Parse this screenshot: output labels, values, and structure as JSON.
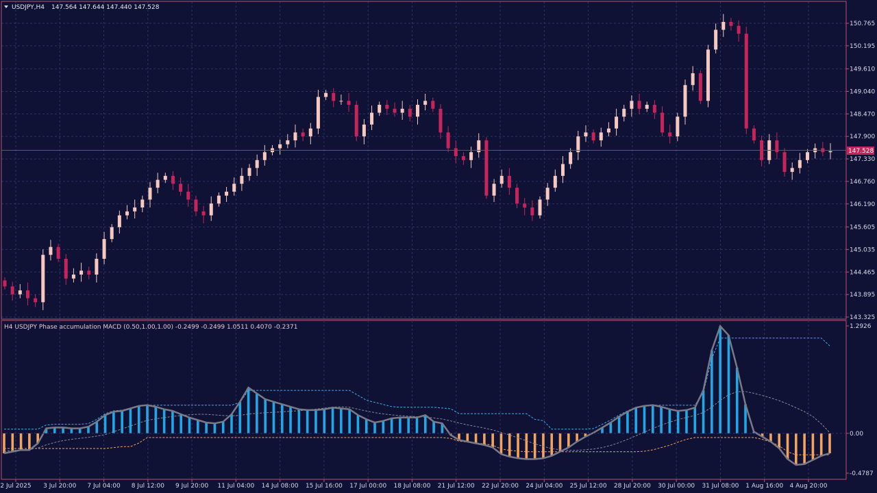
{
  "window": {
    "symbol_title": "USDJPY,H4",
    "ohlc_text": "147.564 147.644 147.440 147.528",
    "indicator_title": "H4 USDJPY Phase accumulation MACD (0.50,1.00,1.00) -0.2499 -0.2499 1.0511 0.4070 -0.2371",
    "current_price_label": "147.528"
  },
  "colors": {
    "background": "#0f1235",
    "grid": "#2b3166",
    "frame": "#c05070",
    "bull_candle": "#f6c8c0",
    "bear_candle": "#c8245c",
    "hist_positive": "#1fa8e8",
    "hist_negative": "#f2a35e",
    "macd_line": "#7a7a86",
    "upper_band": "#3ab0f0",
    "lower_band": "#f2a35e",
    "mid_line": "#8a8a96"
  },
  "chart_data": [
    {
      "type": "candlestick",
      "title": "USDJPY,H4",
      "price_axis_ticks": [
        "150.765",
        "150.195",
        "149.610",
        "149.040",
        "148.470",
        "147.900",
        "147.330",
        "146.760",
        "146.190",
        "145.605",
        "145.035",
        "144.465",
        "143.895",
        "143.325"
      ],
      "ylim": [
        143.325,
        151.2
      ],
      "current_price": 147.528,
      "time_axis_ticks": [
        "2 Jul 2025",
        "3 Jul 20:00",
        "7 Jul 04:00",
        "8 Jul 12:00",
        "9 Jul 20:00",
        "11 Jul 04:00",
        "14 Jul 08:00",
        "15 Jul 16:00",
        "17 Jul 00:00",
        "18 Jul 08:00",
        "21 Jul 12:00",
        "22 Jul 20:00",
        "24 Jul 04:00",
        "25 Jul 12:00",
        "28 Jul 20:00",
        "30 Jul 00:00",
        "31 Jul 08:00",
        "1 Aug 16:00",
        "4 Aug 20:00"
      ],
      "approx_close_path": [
        144.1,
        143.9,
        144.0,
        143.8,
        143.7,
        144.9,
        145.1,
        144.8,
        144.3,
        144.4,
        144.5,
        144.4,
        144.8,
        145.3,
        145.6,
        145.9,
        146.0,
        146.1,
        146.3,
        146.6,
        146.8,
        146.9,
        146.7,
        146.5,
        146.3,
        146.0,
        145.9,
        146.2,
        146.4,
        146.5,
        146.7,
        146.9,
        147.1,
        147.3,
        147.5,
        147.6,
        147.7,
        147.8,
        148.0,
        147.9,
        148.1,
        148.9,
        149.0,
        148.8,
        148.8,
        148.7,
        147.9,
        148.2,
        148.5,
        148.7,
        148.6,
        148.5,
        148.6,
        148.4,
        148.7,
        148.8,
        148.6,
        148.0,
        147.6,
        147.4,
        147.3,
        147.5,
        147.8,
        146.4,
        146.7,
        146.9,
        146.6,
        146.2,
        146.1,
        145.9,
        146.3,
        146.6,
        146.9,
        147.2,
        147.5,
        147.9,
        148.0,
        147.8,
        148.0,
        148.1,
        148.4,
        148.6,
        148.8,
        148.6,
        148.7,
        148.5,
        148.0,
        147.9,
        148.4,
        149.2,
        149.5,
        148.8,
        150.1,
        150.6,
        150.8,
        150.7,
        150.5,
        148.1,
        147.8,
        147.3,
        147.8,
        147.5,
        147.0,
        147.1,
        147.3,
        147.5,
        147.6,
        147.5,
        147.528
      ],
      "xlabel": "",
      "ylabel": ""
    },
    {
      "type": "line",
      "title": "H4 USDJPY Phase accumulation MACD (0.50,1.00,1.00)",
      "header_values": [
        -0.2499,
        -0.2499,
        1.0511,
        0.407,
        -0.2371
      ],
      "y_axis_ticks": [
        "1.2926",
        "0.00",
        "-0.4787"
      ],
      "ylim": [
        -0.4787,
        1.2926
      ],
      "series": [
        {
          "values": [
            -0.24,
            -0.22,
            -0.2,
            -0.2,
            -0.12,
            0.06,
            0.07,
            0.07,
            0.06,
            0.06,
            0.08,
            0.14,
            0.22,
            0.26,
            0.27,
            0.3,
            0.33,
            0.34,
            0.32,
            0.29,
            0.27,
            0.23,
            0.19,
            0.16,
            0.13,
            0.12,
            0.14,
            0.23,
            0.38,
            0.55,
            0.48,
            0.41,
            0.38,
            0.35,
            0.32,
            0.29,
            0.28,
            0.28,
            0.29,
            0.31,
            0.3,
            0.29,
            0.22,
            0.17,
            0.13,
            0.15,
            0.18,
            0.19,
            0.19,
            0.19,
            0.22,
            0.14,
            0.12,
            -0.02,
            -0.08,
            -0.1,
            -0.12,
            -0.14,
            -0.17,
            -0.25,
            -0.28,
            -0.3,
            -0.31,
            -0.31,
            -0.3,
            -0.27,
            -0.22,
            -0.17,
            -0.1,
            -0.04,
            0.01,
            0.07,
            0.13,
            0.2,
            0.26,
            0.31,
            0.33,
            0.34,
            0.32,
            0.29,
            0.27,
            0.28,
            0.31,
            0.52,
            1.0,
            1.29,
            1.18,
            0.79,
            0.35,
            0.02,
            -0.04,
            -0.1,
            -0.18,
            -0.31,
            -0.38,
            -0.37,
            -0.32,
            -0.27,
            -0.24
          ]
        }
      ]
    }
  ]
}
